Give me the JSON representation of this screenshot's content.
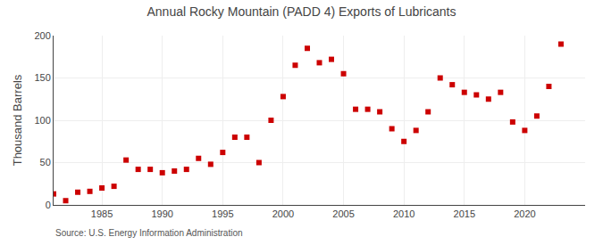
{
  "chart_data": {
    "type": "scatter",
    "title": "Annual Rocky Mountain (PADD 4) Exports of Lubricants",
    "ylabel": "Thousand Barrels",
    "source": "Source: U.S. Energy Information Administration",
    "x": [
      1981,
      1982,
      1983,
      1984,
      1985,
      1986,
      1987,
      1988,
      1989,
      1990,
      1991,
      1992,
      1993,
      1994,
      1995,
      1996,
      1997,
      1998,
      1999,
      2000,
      2001,
      2002,
      2003,
      2004,
      2005,
      2006,
      2007,
      2008,
      2009,
      2010,
      2011,
      2012,
      2013,
      2014,
      2015,
      2016,
      2017,
      2018,
      2019,
      2020,
      2021,
      2022,
      2023
    ],
    "values": [
      13,
      5,
      15,
      16,
      20,
      22,
      53,
      42,
      42,
      38,
      40,
      42,
      55,
      48,
      62,
      80,
      80,
      50,
      100,
      128,
      165,
      185,
      168,
      172,
      155,
      113,
      113,
      110,
      90,
      75,
      88,
      110,
      150,
      142,
      133,
      130,
      125,
      133,
      98,
      88,
      105,
      140,
      190
    ],
    "color": "#cc0000",
    "marker": "square",
    "xlim": [
      1981,
      2025
    ],
    "xticks": [
      1985,
      1990,
      1995,
      2000,
      2005,
      2010,
      2015,
      2020
    ],
    "ylim": [
      0,
      200
    ],
    "yticks": [
      0,
      50,
      100,
      150,
      200
    ],
    "grid": true
  }
}
